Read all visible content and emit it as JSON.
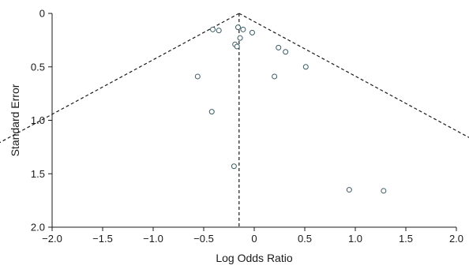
{
  "chart_data": {
    "type": "scatter",
    "title": "",
    "xlabel": "Log Odds Ratio",
    "ylabel": "Standard Error",
    "xlim": [
      -2.0,
      2.0
    ],
    "ylim": [
      0,
      2.0
    ],
    "y_inverted": true,
    "grid": false,
    "x_ticks": [
      -2.0,
      -1.5,
      -1.0,
      -0.5,
      0,
      0.5,
      1.0,
      1.5,
      2.0
    ],
    "x_tick_labels": [
      "−2.0",
      "−1.5",
      "−1.0",
      "−0.5",
      "0",
      "0.5",
      "1.0",
      "1.5",
      "2.0"
    ],
    "y_ticks": [
      0,
      0.5,
      1.0,
      1.5,
      2.0
    ],
    "y_tick_labels": [
      "0",
      "0.5",
      "1.0",
      "1.5",
      "2.0"
    ],
    "pooled_estimate": -0.15,
    "funnel_multiplier": 1.96,
    "colors": {
      "axis": "#1a1a1a",
      "points": "#3a5a63",
      "lines": "#1a1a1a"
    },
    "points": [
      {
        "x": -0.41,
        "y": 0.15
      },
      {
        "x": -0.35,
        "y": 0.16
      },
      {
        "x": -0.16,
        "y": 0.13
      },
      {
        "x": -0.11,
        "y": 0.15
      },
      {
        "x": -0.02,
        "y": 0.18
      },
      {
        "x": -0.14,
        "y": 0.23
      },
      {
        "x": -0.19,
        "y": 0.29
      },
      {
        "x": -0.17,
        "y": 0.31
      },
      {
        "x": 0.24,
        "y": 0.32
      },
      {
        "x": 0.31,
        "y": 0.36
      },
      {
        "x": 0.51,
        "y": 0.5
      },
      {
        "x": -0.56,
        "y": 0.59
      },
      {
        "x": 0.2,
        "y": 0.59
      },
      {
        "x": -0.42,
        "y": 0.92
      },
      {
        "x": -0.2,
        "y": 1.43
      },
      {
        "x": 0.94,
        "y": 1.65
      },
      {
        "x": 1.28,
        "y": 1.66
      }
    ]
  }
}
